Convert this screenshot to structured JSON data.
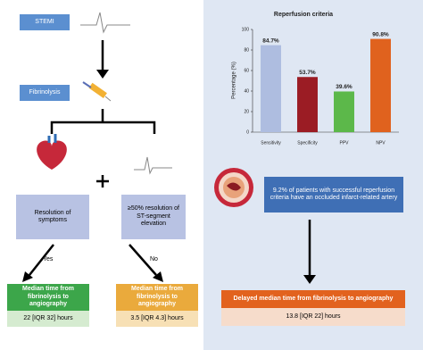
{
  "left": {
    "stemi": "STEMI",
    "fibrinolysis": "Fibrinolysis",
    "resolution_symptoms": "Resolution of symptoms",
    "resolution_st": "≥50% resolution of ST-segment elevation",
    "yes": "Yes",
    "no": "No",
    "box_yes": {
      "title": "Median time from fibrinolysis to angiography",
      "value": "22 [IQR 32] hours"
    },
    "box_no": {
      "title": "Median time from fibrinolysis to angiography",
      "value": "3.5 [IQR 4.3] hours"
    }
  },
  "chart_data": {
    "type": "bar",
    "title": "Reperfusion criteria",
    "y_label": "Percentage (%)",
    "categories": [
      "Sensitivity",
      "Specificity",
      "PPV",
      "NPV"
    ],
    "values": [
      84.7,
      53.7,
      39.6,
      90.8
    ],
    "value_labels": [
      "84.7%",
      "53.7%",
      "39.6%",
      "90.8%"
    ],
    "colors": [
      "#aebde0",
      "#9b1c24",
      "#5cb84a",
      "#e0621e"
    ],
    "ylim": [
      0,
      100
    ],
    "yticks": [
      0,
      20,
      40,
      60,
      80,
      100
    ],
    "grid": false
  },
  "right": {
    "note": "9.2% of patients with successful reperfusion criteria have an occluded infarct-related artery",
    "box": {
      "title": "Delayed median time from fibrinolysis to angiography",
      "value": "13.8 [IQR 22] hours"
    }
  }
}
